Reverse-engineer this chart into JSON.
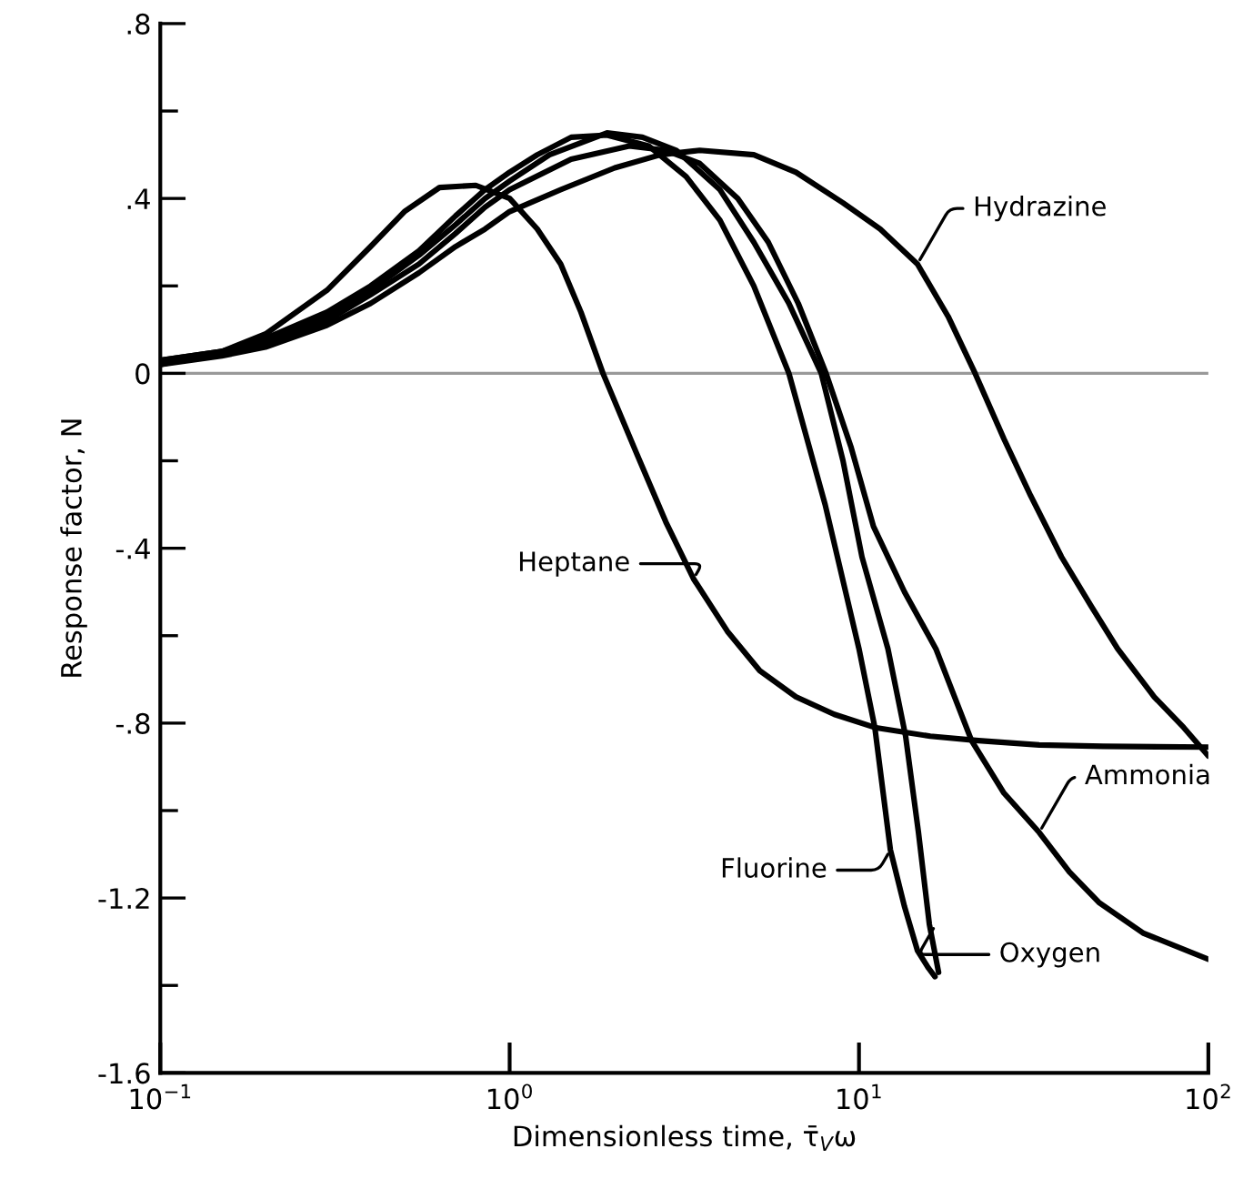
{
  "chart_data": {
    "type": "line",
    "xlabel": "Dimensionless time, τ̄$_{V}$ω",
    "ylabel": "Response factor, N",
    "log": "x",
    "xlim": [
      0.1,
      100
    ],
    "ylim": [
      -1.6,
      0.8
    ],
    "xticks": [
      {
        "value": 0.1,
        "label": "10$^{−1}$"
      },
      {
        "value": 1,
        "label": "10$^{0}$"
      },
      {
        "value": 10,
        "label": "10$^{1}$"
      },
      {
        "value": 100,
        "label": "10$^{2}$"
      }
    ],
    "yticks": [
      {
        "value": 0.8,
        "label": ".8"
      },
      {
        "value": 0.6,
        "label": null
      },
      {
        "value": 0.4,
        "label": ".4"
      },
      {
        "value": 0.2,
        "label": null
      },
      {
        "value": 0,
        "label": "0"
      },
      {
        "value": -0.2,
        "label": null
      },
      {
        "value": -0.4,
        "label": "-.4"
      },
      {
        "value": -0.6,
        "label": null
      },
      {
        "value": -0.8,
        "label": "-.8"
      },
      {
        "value": -1.0,
        "label": null
      },
      {
        "value": -1.2,
        "label": "-1.2"
      },
      {
        "value": -1.4,
        "label": null
      },
      {
        "value": -1.6,
        "label": "-1.6"
      }
    ],
    "grid": false,
    "legend": false,
    "marker": "none",
    "line_style": "solid",
    "ref_lines": [
      {
        "axis": "y",
        "value": 0,
        "color": "#999999"
      }
    ],
    "series": [
      {
        "color": "#000000",
        "x": [
          0.1,
          0.15,
          0.2,
          0.3,
          0.4,
          0.55,
          0.7,
          0.85,
          1.0,
          1.2,
          1.5,
          1.9,
          2.5,
          3.2,
          4,
          5,
          6.3,
          8,
          10,
          11.1,
          12.3,
          13.5,
          14.7,
          15.8,
          16.5
        ],
        "values": [
          0.03,
          0.05,
          0.08,
          0.14,
          0.2,
          0.28,
          0.36,
          0.42,
          0.46,
          0.5,
          0.54,
          0.545,
          0.52,
          0.45,
          0.35,
          0.2,
          0,
          -0.3,
          -0.63,
          -0.81,
          -1.09,
          -1.22,
          -1.32,
          -1.36,
          -1.38
        ]
      },
      {
        "color": "#000000",
        "x": [
          0.1,
          0.15,
          0.2,
          0.3,
          0.4,
          0.55,
          0.7,
          0.85,
          1,
          1.3,
          1.9,
          2.4,
          3,
          4,
          5,
          6.3,
          7.8,
          9,
          10.2,
          12.1,
          13.6,
          14.8,
          15.9,
          16.9
        ],
        "values": [
          0.03,
          0.05,
          0.075,
          0.13,
          0.19,
          0.27,
          0.34,
          0.4,
          0.44,
          0.5,
          0.55,
          0.54,
          0.51,
          0.42,
          0.3,
          0.16,
          0,
          -0.2,
          -0.42,
          -0.63,
          -0.83,
          -1.05,
          -1.26,
          -1.37
        ]
      },
      {
        "color": "#000000",
        "x": [
          0.1,
          0.15,
          0.2,
          0.3,
          0.4,
          0.55,
          0.7,
          0.85,
          1,
          1.5,
          2.2,
          2.8,
          3.5,
          4.5,
          5.5,
          6.7,
          8.05,
          9.5,
          11,
          13.5,
          16.6,
          21,
          26,
          32.8,
          40,
          48.6,
          65,
          100
        ],
        "values": [
          0.025,
          0.045,
          0.07,
          0.12,
          0.18,
          0.25,
          0.32,
          0.38,
          0.42,
          0.49,
          0.52,
          0.51,
          0.48,
          0.4,
          0.3,
          0.16,
          0,
          -0.17,
          -0.35,
          -0.5,
          -0.63,
          -0.84,
          -0.96,
          -1.05,
          -1.14,
          -1.21,
          -1.28,
          -1.34
        ]
      },
      {
        "color": "#000000",
        "x": [
          0.1,
          0.15,
          0.2,
          0.3,
          0.4,
          0.55,
          0.7,
          0.85,
          1,
          1.4,
          2,
          2.7,
          3.5,
          5,
          6.6,
          9,
          11.5,
          14.7,
          18,
          21.5,
          26,
          31,
          38,
          46,
          55,
          70,
          85,
          100
        ],
        "values": [
          0.02,
          0.04,
          0.06,
          0.11,
          0.16,
          0.23,
          0.29,
          0.33,
          0.37,
          0.42,
          0.47,
          0.5,
          0.51,
          0.5,
          0.46,
          0.39,
          0.33,
          0.25,
          0.13,
          0,
          -0.15,
          -0.28,
          -0.42,
          -0.53,
          -0.63,
          -0.74,
          -0.81,
          -0.875
        ]
      },
      {
        "color": "#000000",
        "x": [
          0.1,
          0.15,
          0.2,
          0.3,
          0.4,
          0.5,
          0.63,
          0.8,
          1,
          1.2,
          1.4,
          1.6,
          1.85,
          2.3,
          2.8,
          3.36,
          4.2,
          5.2,
          6.6,
          8.5,
          11.1,
          16,
          22,
          32.8,
          50,
          100
        ],
        "values": [
          0.02,
          0.05,
          0.09,
          0.19,
          0.29,
          0.37,
          0.425,
          0.43,
          0.4,
          0.33,
          0.25,
          0.14,
          0,
          -0.18,
          -0.34,
          -0.47,
          -0.59,
          -0.68,
          -0.74,
          -0.78,
          -0.81,
          -0.83,
          -0.84,
          -0.85,
          -0.853,
          -0.855
        ]
      }
    ],
    "annotations": [
      {
        "text": "Fluorine",
        "x": 12.3,
        "y": -1.09
      },
      {
        "text": "Oxygen",
        "x": 16.6,
        "y": -1.26
      },
      {
        "text": "Ammonia",
        "x": 32.8,
        "y": -1.05
      },
      {
        "text": "Hydrazine",
        "x": 14.7,
        "y": 0.25
      },
      {
        "text": "Heptane",
        "x": 3.36,
        "y": -0.47
      }
    ]
  }
}
